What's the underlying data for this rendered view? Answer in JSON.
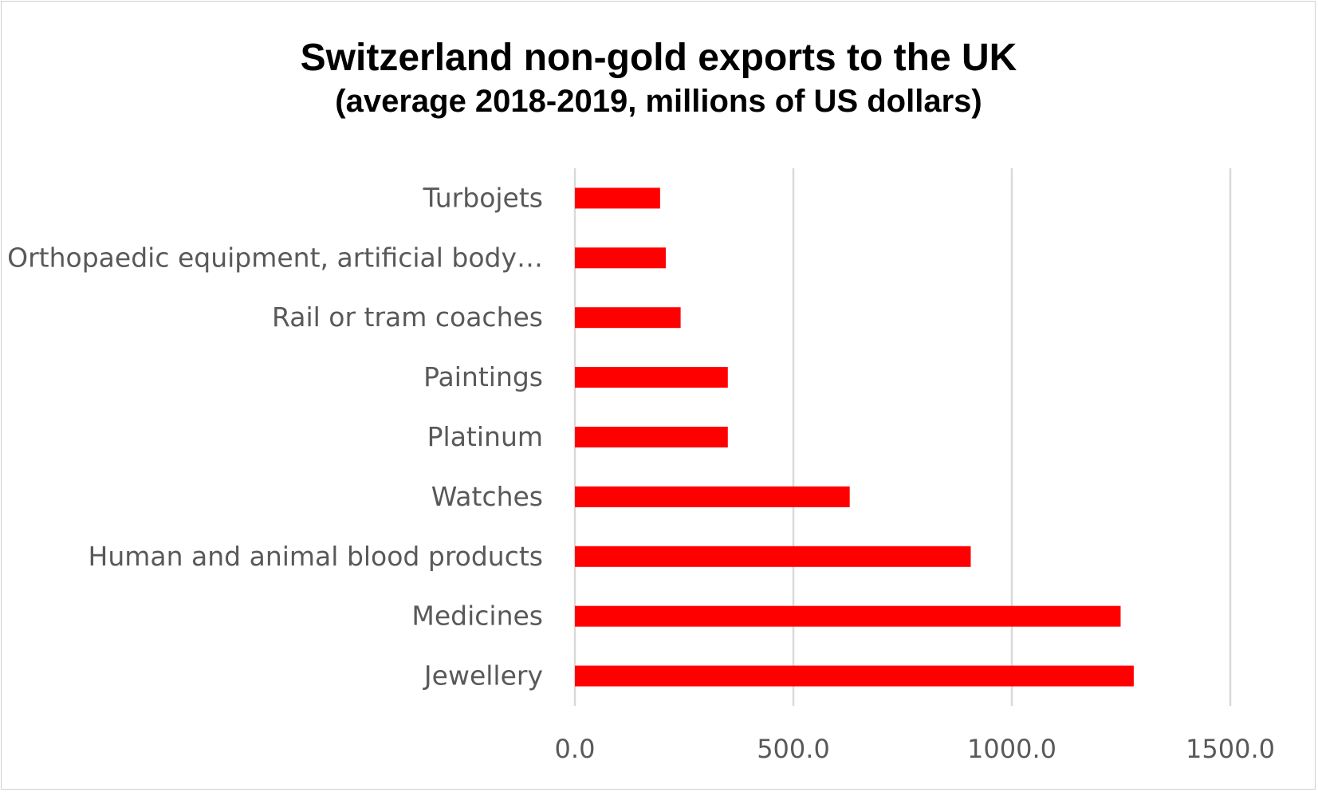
{
  "chart_data": {
    "type": "bar",
    "orientation": "horizontal",
    "title": "Switzerland non-gold exports to the UK",
    "subtitle": "(average 2018-2019, millions of US dollars)",
    "categories": [
      "Turbojets",
      "Orthopaedic equipment, artificial body…",
      "Rail or tram coaches",
      "Paintings",
      "Platinum",
      "Watches",
      "Human and animal blood products",
      "Medicines",
      "Jewellery"
    ],
    "values": [
      195,
      208,
      242,
      350,
      350,
      629,
      906,
      1249,
      1279
    ],
    "xlim": [
      0,
      1500
    ],
    "xticks": [
      "0.0",
      "500.0",
      "1000.0",
      "1500.0"
    ],
    "xlabel": "",
    "ylabel": "",
    "grid": "vertical",
    "bar_color": "#ff0000"
  }
}
